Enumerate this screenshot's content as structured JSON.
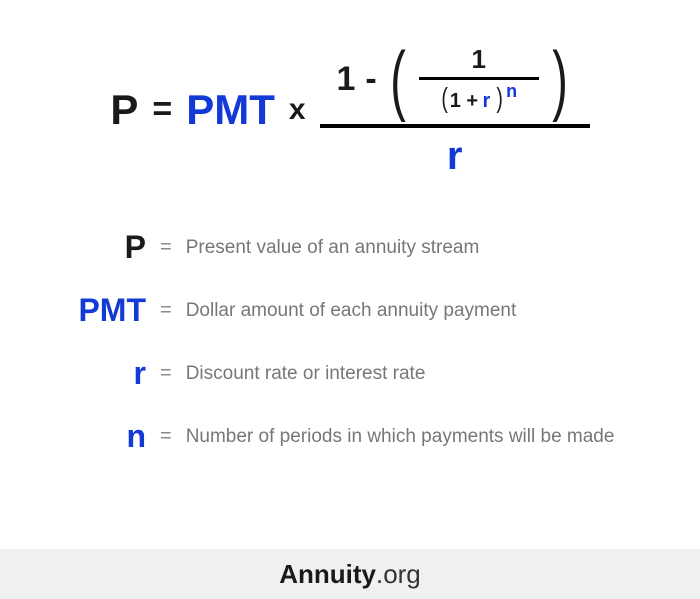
{
  "colors": {
    "blue": "#1339d6",
    "black": "#1a1a1a",
    "gray_text": "#777777",
    "gray_eq": "#8a8a8a",
    "footer_bg": "#eef0f2"
  },
  "formula": {
    "P": "P",
    "eq": "=",
    "PMT": "PMT",
    "x": "x",
    "num_one": "1",
    "minus": "-",
    "inner_one": "1",
    "inner_oneplus": "1 +",
    "inner_r": "r",
    "inner_n": "n",
    "den_r": "r"
  },
  "legend": [
    {
      "sym": "P",
      "color": "black",
      "desc": "Present value of an annuity stream"
    },
    {
      "sym": "PMT",
      "color": "blue",
      "desc": "Dollar amount of each annuity payment"
    },
    {
      "sym": "r",
      "color": "blue",
      "desc": "Discount rate or interest rate"
    },
    {
      "sym": "n",
      "color": "blue",
      "desc": "Number of periods in which payments will be made"
    }
  ],
  "footer": {
    "bold": "Annuity",
    "light": ".org"
  }
}
